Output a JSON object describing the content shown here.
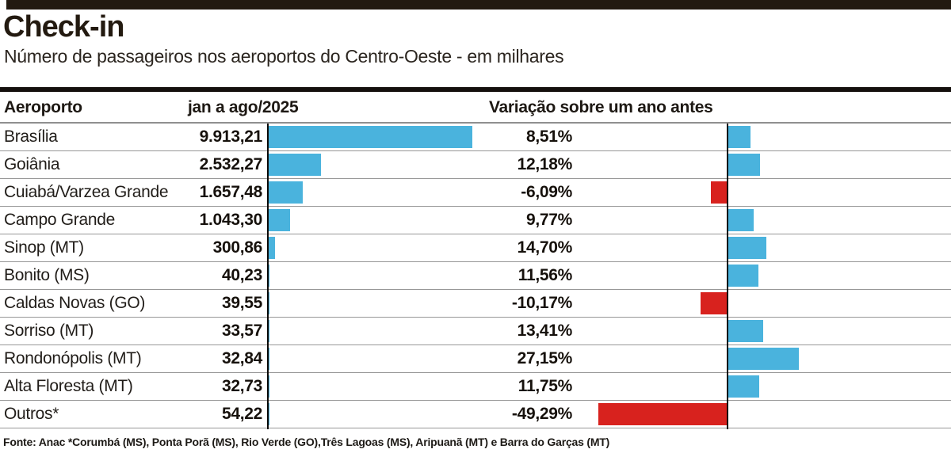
{
  "header": {
    "title": "Check-in",
    "subtitle": "Número de passageiros nos aeroportos do Centro-Oeste - em milhares"
  },
  "table": {
    "columns": [
      "Aeroporto",
      "jan a ago/2025",
      "Variação sobre um ano antes"
    ],
    "rows": [
      {
        "airport": "Brasília",
        "value": "9.913,21",
        "value_num": 9913.21,
        "variation": "8,51%",
        "variation_num": 8.51
      },
      {
        "airport": "Goiânia",
        "value": "2.532,27",
        "value_num": 2532.27,
        "variation": "12,18%",
        "variation_num": 12.18
      },
      {
        "airport": "Cuiabá/Varzea Grande",
        "value": "1.657,48",
        "value_num": 1657.48,
        "variation": "-6,09%",
        "variation_num": -6.09
      },
      {
        "airport": "Campo Grande",
        "value": "1.043,30",
        "value_num": 1043.3,
        "variation": "9,77%",
        "variation_num": 9.77
      },
      {
        "airport": "Sinop (MT)",
        "value": "300,86",
        "value_num": 300.86,
        "variation": "14,70%",
        "variation_num": 14.7
      },
      {
        "airport": "Bonito (MS)",
        "value": "40,23",
        "value_num": 40.23,
        "variation": "11,56%",
        "variation_num": 11.56
      },
      {
        "airport": "Caldas Novas (GO)",
        "value": "39,55",
        "value_num": 39.55,
        "variation": "-10,17%",
        "variation_num": -10.17
      },
      {
        "airport": "Sorriso (MT)",
        "value": "33,57",
        "value_num": 33.57,
        "variation": "13,41%",
        "variation_num": 13.41
      },
      {
        "airport": "Rondonópolis (MT)",
        "value": "32,84",
        "value_num": 32.84,
        "variation": "27,15%",
        "variation_num": 27.15
      },
      {
        "airport": "Alta Floresta (MT)",
        "value": "32,73",
        "value_num": 32.73,
        "variation": "11,75%",
        "variation_num": 11.75
      },
      {
        "airport": "Outros*",
        "value": "54,22",
        "value_num": 54.22,
        "variation": "-49,29%",
        "variation_num": -49.29
      }
    ]
  },
  "footer": {
    "source": "Fonte: Anac *Corumbá (MS), Ponta Porã (MS), Rio Verde (GO),Três Lagoas (MS), Aripuanã (MT) e Barra do Garças (MT)"
  },
  "colors": {
    "bar_positive": "#4ab3dd",
    "bar_negative": "#d8221e",
    "dark": "#231a10"
  },
  "chart_data": {
    "type": "bar",
    "title": "Check-in",
    "subtitle": "Número de passageiros nos aeroportos do Centro-Oeste - em milhares",
    "categories": [
      "Brasília",
      "Goiânia",
      "Cuiabá/Varzea Grande",
      "Campo Grande",
      "Sinop (MT)",
      "Bonito (MS)",
      "Caldas Novas (GO)",
      "Sorriso (MT)",
      "Rondonópolis (MT)",
      "Alta Floresta (MT)",
      "Outros*"
    ],
    "series": [
      {
        "name": "jan a ago/2025 (passageiros em milhares)",
        "values": [
          9913.21,
          2532.27,
          1657.48,
          1043.3,
          300.86,
          40.23,
          39.55,
          33.57,
          32.84,
          32.73,
          54.22
        ]
      },
      {
        "name": "Variação sobre um ano antes (%)",
        "values": [
          8.51,
          12.18,
          -6.09,
          9.77,
          14.7,
          11.56,
          -10.17,
          13.41,
          27.15,
          11.75,
          -49.29
        ]
      }
    ],
    "orientation": "horizontal",
    "legend_position": "none",
    "grid": "row-separators",
    "source": "Fonte: Anac"
  }
}
